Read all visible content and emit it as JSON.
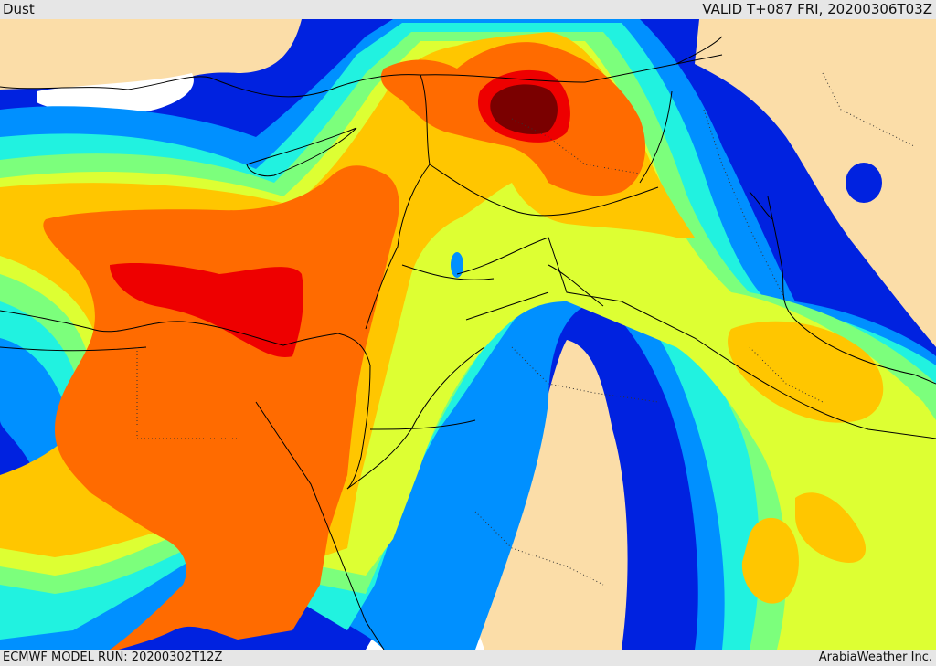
{
  "header": {
    "title": "Dust",
    "valid": "VALID T+087 FRI, 20200306T03Z"
  },
  "footer": {
    "model_run": "ECMWF MODEL RUN: 20200302T12Z",
    "brand": "ArabiaWeather Inc."
  },
  "colors": {
    "land": "#fbdda8",
    "sea_white": "#ffffff",
    "blue": "#0022e0",
    "azure": "#0090ff",
    "cyan": "#21f2e0",
    "green": "#7cff7c",
    "yellow_green": "#ddff33",
    "yellow": "#ffc600",
    "orange": "#ff6b00",
    "red": "#ee0000",
    "dark_red": "#7a0000"
  }
}
